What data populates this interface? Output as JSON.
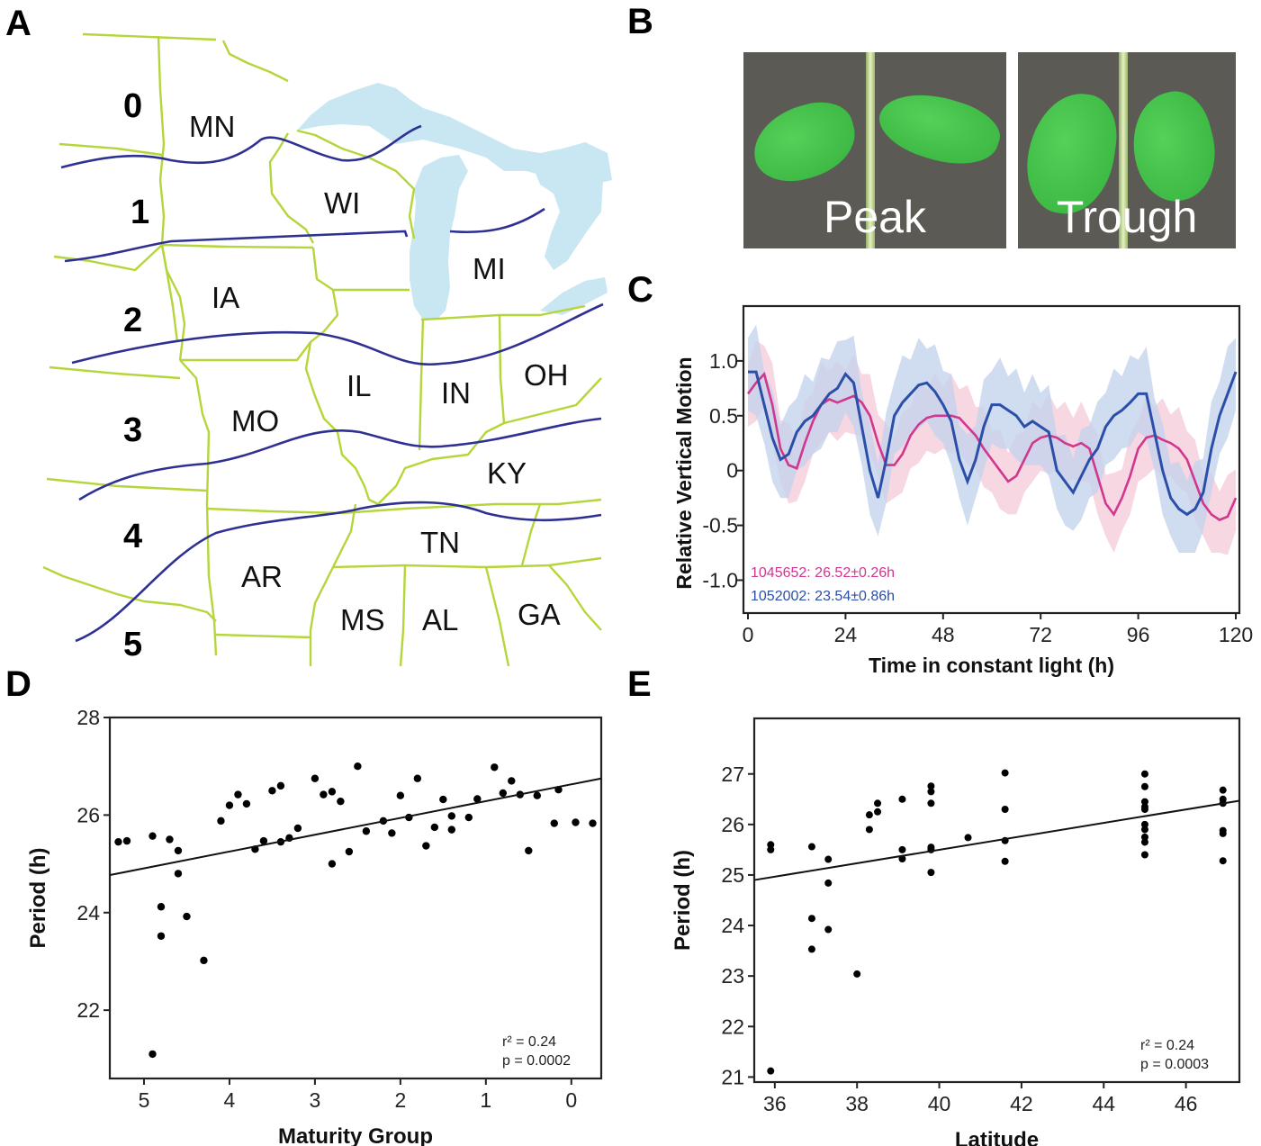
{
  "panels": {
    "A": {
      "letter": "A"
    },
    "B": {
      "letter": "B"
    },
    "C": {
      "letter": "C"
    },
    "D": {
      "letter": "D"
    },
    "E": {
      "letter": "E"
    }
  },
  "map": {
    "zone_labels": [
      "0",
      "1",
      "2",
      "3",
      "4",
      "5"
    ],
    "state_labels": [
      "MN",
      "WI",
      "MI",
      "IA",
      "IL",
      "IN",
      "OH",
      "MO",
      "KY",
      "TN",
      "AR",
      "MS",
      "AL",
      "GA"
    ],
    "colors": {
      "border": "#b5d63a",
      "water": "#c9e6f3",
      "zone_line": "#2e3192"
    }
  },
  "photos": [
    {
      "label": "Peak"
    },
    {
      "label": "Trough"
    }
  ],
  "chart_data": [
    {
      "id": "C",
      "type": "line",
      "xlabel": "Time in constant light (h)",
      "ylabel": "Relative Vertical Motion",
      "xlim": [
        0,
        120
      ],
      "ylim": [
        -1.3,
        1.5
      ],
      "xticks": [
        0,
        24,
        48,
        72,
        96,
        120
      ],
      "yticks": [
        1.0,
        0.5,
        0,
        -0.5,
        -1.0
      ],
      "ytick_labels": [
        "1.0",
        "0.5",
        "0",
        "-0.5",
        "-1.0"
      ],
      "series": [
        {
          "name": "1045652",
          "legend": "1045652: 26.52±0.26h",
          "color": "#d0378f",
          "band_color": "#f5cdd9",
          "x": [
            0,
            2,
            4,
            6,
            8,
            10,
            12,
            14,
            16,
            18,
            20,
            22,
            24,
            26,
            28,
            30,
            32,
            34,
            36,
            38,
            40,
            42,
            44,
            46,
            48,
            50,
            52,
            54,
            56,
            58,
            60,
            62,
            64,
            66,
            68,
            70,
            72,
            74,
            76,
            78,
            80,
            82,
            84,
            86,
            88,
            90,
            92,
            94,
            96,
            98,
            100,
            102,
            104,
            106,
            108,
            110,
            112,
            114,
            116,
            118,
            120
          ],
          "y": [
            0.7,
            0.8,
            0.88,
            0.6,
            0.2,
            0.05,
            0.02,
            0.25,
            0.45,
            0.6,
            0.65,
            0.62,
            0.65,
            0.68,
            0.62,
            0.5,
            0.25,
            0.05,
            0.05,
            0.15,
            0.32,
            0.42,
            0.48,
            0.5,
            0.5,
            0.5,
            0.48,
            0.4,
            0.32,
            0.2,
            0.1,
            0.0,
            -0.1,
            -0.05,
            0.1,
            0.25,
            0.3,
            0.32,
            0.3,
            0.25,
            0.22,
            0.25,
            0.2,
            -0.05,
            -0.3,
            -0.4,
            -0.25,
            -0.05,
            0.2,
            0.3,
            0.32,
            0.28,
            0.25,
            0.2,
            0.1,
            -0.1,
            -0.3,
            -0.4,
            -0.45,
            -0.42,
            -0.25
          ],
          "band": 0.3
        },
        {
          "name": "1052002",
          "legend": "1052002: 23.54±0.86h",
          "color": "#2b4fa8",
          "band_color": "#c4d3ec",
          "x": [
            0,
            2,
            4,
            6,
            8,
            10,
            12,
            14,
            16,
            18,
            20,
            22,
            24,
            26,
            28,
            30,
            32,
            34,
            36,
            38,
            40,
            42,
            44,
            46,
            48,
            50,
            52,
            54,
            56,
            58,
            60,
            62,
            64,
            66,
            68,
            70,
            72,
            74,
            76,
            78,
            80,
            82,
            84,
            86,
            88,
            90,
            92,
            94,
            96,
            98,
            100,
            102,
            104,
            106,
            108,
            110,
            112,
            114,
            116,
            118,
            120
          ],
          "y": [
            0.9,
            0.9,
            0.6,
            0.3,
            0.1,
            0.15,
            0.35,
            0.45,
            0.5,
            0.6,
            0.7,
            0.75,
            0.88,
            0.8,
            0.4,
            0.0,
            -0.25,
            0.1,
            0.5,
            0.62,
            0.7,
            0.78,
            0.8,
            0.72,
            0.6,
            0.45,
            0.1,
            -0.1,
            0.1,
            0.4,
            0.6,
            0.6,
            0.55,
            0.5,
            0.4,
            0.45,
            0.4,
            0.35,
            0.0,
            -0.1,
            -0.2,
            -0.05,
            0.1,
            0.2,
            0.4,
            0.5,
            0.55,
            0.62,
            0.7,
            0.7,
            0.35,
            0.0,
            -0.25,
            -0.35,
            -0.4,
            -0.35,
            -0.2,
            0.2,
            0.5,
            0.7,
            0.9
          ],
          "band": 0.35
        }
      ]
    },
    {
      "id": "D",
      "type": "scatter",
      "xlabel": "Maturity Group",
      "ylabel": "Period (h)",
      "xlim": [
        5.4,
        -0.35
      ],
      "ylim": [
        20.6,
        28
      ],
      "xticks": [
        5,
        4,
        3,
        2,
        1,
        0
      ],
      "yticks": [
        28,
        26,
        24,
        22
      ],
      "points": [
        [
          5.3,
          25.45
        ],
        [
          5.2,
          25.47
        ],
        [
          4.9,
          25.57
        ],
        [
          4.7,
          25.5
        ],
        [
          4.6,
          25.27
        ],
        [
          4.6,
          24.8
        ],
        [
          4.8,
          24.12
        ],
        [
          4.8,
          23.52
        ],
        [
          4.5,
          23.92
        ],
        [
          4.3,
          23.02
        ],
        [
          4.9,
          21.1
        ],
        [
          4.1,
          25.88
        ],
        [
          4.0,
          26.2
        ],
        [
          3.9,
          26.42
        ],
        [
          3.8,
          26.23
        ],
        [
          3.7,
          25.3
        ],
        [
          3.6,
          25.47
        ],
        [
          3.5,
          26.5
        ],
        [
          3.4,
          26.6
        ],
        [
          3.4,
          25.45
        ],
        [
          3.3,
          25.53
        ],
        [
          3.2,
          25.73
        ],
        [
          3.0,
          26.75
        ],
        [
          2.9,
          26.42
        ],
        [
          2.8,
          26.48
        ],
        [
          2.8,
          25.0
        ],
        [
          2.7,
          26.28
        ],
        [
          2.6,
          25.25
        ],
        [
          2.5,
          27.0
        ],
        [
          2.4,
          25.67
        ],
        [
          2.2,
          25.88
        ],
        [
          2.1,
          25.63
        ],
        [
          2.0,
          26.4
        ],
        [
          1.9,
          25.95
        ],
        [
          1.8,
          26.75
        ],
        [
          1.7,
          25.37
        ],
        [
          1.6,
          25.75
        ],
        [
          1.5,
          26.32
        ],
        [
          1.4,
          25.98
        ],
        [
          1.4,
          25.7
        ],
        [
          1.2,
          25.95
        ],
        [
          1.1,
          26.33
        ],
        [
          0.9,
          26.98
        ],
        [
          0.8,
          26.45
        ],
        [
          0.7,
          26.7
        ],
        [
          0.6,
          26.42
        ],
        [
          0.5,
          25.27
        ],
        [
          0.4,
          26.4
        ],
        [
          0.2,
          25.83
        ],
        [
          0.15,
          26.52
        ],
        [
          -0.05,
          25.85
        ],
        [
          -0.25,
          25.83
        ]
      ],
      "regression": {
        "x": [
          5.4,
          -0.35
        ],
        "y": [
          24.77,
          26.75
        ]
      },
      "annotation": {
        "r2_label": "r² = 0.24",
        "p_label": "p  = 0.0002"
      }
    },
    {
      "id": "E",
      "type": "scatter",
      "xlabel": "Latitude",
      "ylabel": "Period (h)",
      "xlim": [
        35.5,
        47.3
      ],
      "ylim": [
        20.9,
        28.1
      ],
      "xticks": [
        36,
        38,
        40,
        42,
        44,
        46
      ],
      "yticks": [
        27,
        26,
        25,
        24,
        23,
        22,
        21
      ],
      "points": [
        [
          35.9,
          25.6
        ],
        [
          35.9,
          25.5
        ],
        [
          35.9,
          21.12
        ],
        [
          36.9,
          25.56
        ],
        [
          36.9,
          24.14
        ],
        [
          36.9,
          23.53
        ],
        [
          37.3,
          25.31
        ],
        [
          37.3,
          24.84
        ],
        [
          37.3,
          23.92
        ],
        [
          38.0,
          23.04
        ],
        [
          38.3,
          26.19
        ],
        [
          38.3,
          25.9
        ],
        [
          38.5,
          26.42
        ],
        [
          38.5,
          26.25
        ],
        [
          39.1,
          26.5
        ],
        [
          39.1,
          25.5
        ],
        [
          39.1,
          25.32
        ],
        [
          39.8,
          26.76
        ],
        [
          39.8,
          26.65
        ],
        [
          39.8,
          26.42
        ],
        [
          39.8,
          25.55
        ],
        [
          39.8,
          25.5
        ],
        [
          39.8,
          25.05
        ],
        [
          40.7,
          25.74
        ],
        [
          41.6,
          27.02
        ],
        [
          41.6,
          26.3
        ],
        [
          41.6,
          25.68
        ],
        [
          41.6,
          25.27
        ],
        [
          45.0,
          27.0
        ],
        [
          45.0,
          26.75
        ],
        [
          45.0,
          26.45
        ],
        [
          45.0,
          26.35
        ],
        [
          45.0,
          26.3
        ],
        [
          45.0,
          26.0
        ],
        [
          45.0,
          25.9
        ],
        [
          45.0,
          25.75
        ],
        [
          45.0,
          25.65
        ],
        [
          45.0,
          25.4
        ],
        [
          46.9,
          26.68
        ],
        [
          46.9,
          26.5
        ],
        [
          46.9,
          26.42
        ],
        [
          46.9,
          25.88
        ],
        [
          46.9,
          25.82
        ],
        [
          46.9,
          25.28
        ]
      ],
      "regression": {
        "x": [
          35.5,
          47.3
        ],
        "y": [
          24.9,
          26.47
        ]
      },
      "annotation": {
        "r2_label": "r² = 0.24",
        "p_label": "p  = 0.0003"
      }
    }
  ]
}
